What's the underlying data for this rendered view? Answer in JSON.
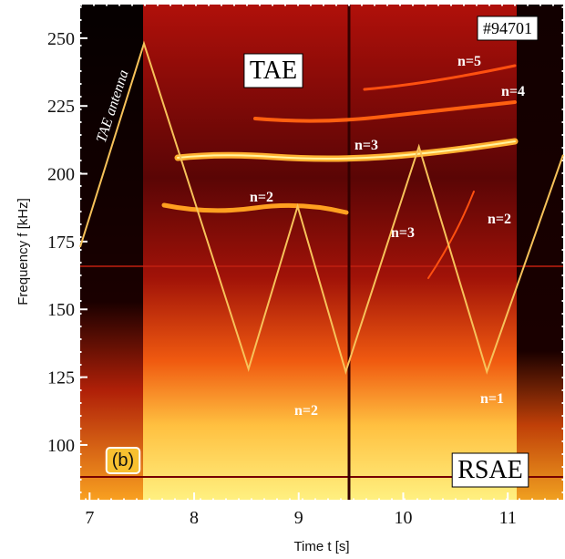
{
  "chart_data": {
    "type": "spectrogram",
    "xlabel": "Time t [s]",
    "ylabel": "Frequency f [kHz]",
    "xlim": [
      6.91,
      11.53
    ],
    "xticks": [
      7,
      8,
      9,
      10,
      11
    ],
    "ylim": [
      79.8,
      262.4
    ],
    "yticks": [
      100,
      125,
      150,
      175,
      200,
      225,
      250
    ],
    "series": [
      {
        "name": "TAE antenna",
        "color": "#f7c25a",
        "x": [
          6.91,
          7.52,
          8.52,
          8.99,
          9.45,
          10.15,
          10.8,
          11.53
        ],
        "values": [
          173,
          248,
          128,
          188,
          127,
          210,
          127,
          207
        ]
      }
    ],
    "annotations": [
      "TAE",
      "#94701",
      "n=5",
      "n=4",
      "n=3",
      "n=2",
      "n=3",
      "n=2",
      "n=2",
      "n=1",
      "(b)",
      "RSAE"
    ]
  }
}
